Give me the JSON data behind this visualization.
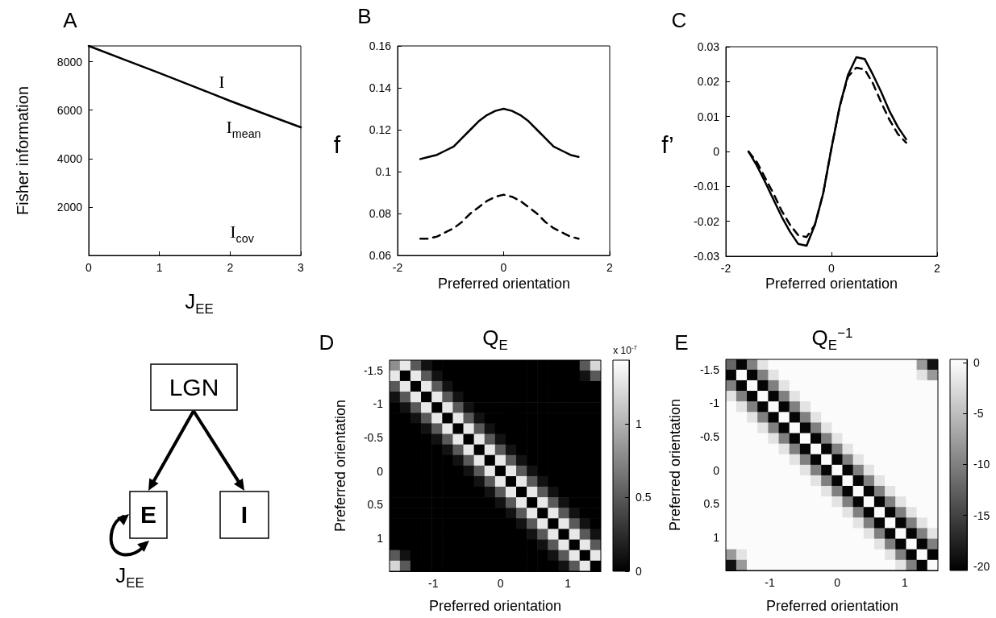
{
  "chart_data": [
    {
      "type": "line",
      "title": "A",
      "xlabel": "J$_{EE}$",
      "ylabel": "Fisher information",
      "x": [
        0,
        0.5,
        1,
        1.5,
        2,
        2.5,
        3
      ],
      "series": [
        {
          "color": "#000000",
          "line_style": "solid",
          "values": [
            8650,
            8090,
            7530,
            6960,
            6380,
            5830,
            5290
          ]
        }
      ],
      "xlim": [
        0,
        3
      ],
      "xticks": [
        0,
        1,
        2,
        3
      ],
      "ylim": [
        0,
        8650
      ],
      "yticks": [
        2000,
        4000,
        6000,
        8000
      ],
      "annotations": [
        "I",
        "I$_{mean}$",
        "I$_{cov}$"
      ]
    },
    {
      "type": "line",
      "title": "B",
      "xlabel": "Preferred orientation",
      "ylabel": "f",
      "x": [
        -1.571,
        -1.414,
        -1.257,
        -1.1,
        -0.942,
        -0.785,
        -0.628,
        -0.471,
        -0.314,
        -0.157,
        0,
        0.157,
        0.314,
        0.471,
        0.628,
        0.785,
        0.942,
        1.1,
        1.257,
        1.414
      ],
      "series": [
        {
          "color": "#000000",
          "line_style": "solid",
          "values": [
            0.106,
            0.107,
            0.108,
            0.11,
            0.112,
            0.116,
            0.12,
            0.124,
            0.127,
            0.129,
            0.13,
            0.129,
            0.127,
            0.124,
            0.12,
            0.116,
            0.112,
            0.11,
            0.108,
            0.107
          ]
        },
        {
          "color": "#000000",
          "line_style": "dashed",
          "values": [
            0.068,
            0.068,
            0.069,
            0.071,
            0.073,
            0.076,
            0.08,
            0.083,
            0.086,
            0.088,
            0.089,
            0.088,
            0.086,
            0.083,
            0.08,
            0.076,
            0.073,
            0.071,
            0.069,
            0.068
          ]
        }
      ],
      "xlim": [
        -2,
        2
      ],
      "xticks": [
        -2,
        0,
        2
      ],
      "ylim": [
        0.06,
        0.16
      ],
      "yticks": [
        0.06,
        0.08,
        0.1,
        0.12,
        0.14,
        0.16
      ]
    },
    {
      "type": "line",
      "title": "C",
      "xlabel": "Preferred orientation",
      "ylabel": "f’",
      "x": [
        -1.571,
        -1.414,
        -1.257,
        -1.1,
        -0.942,
        -0.785,
        -0.628,
        -0.471,
        -0.314,
        -0.157,
        0,
        0.157,
        0.314,
        0.471,
        0.628,
        0.785,
        0.942,
        1.1,
        1.257,
        1.414
      ],
      "series": [
        {
          "color": "#000000",
          "line_style": "solid",
          "values": [
            0,
            -0.004,
            -0.0087,
            -0.0137,
            -0.0187,
            -0.023,
            -0.0265,
            -0.027,
            -0.021,
            -0.012,
            0.001,
            0.013,
            0.022,
            0.027,
            0.0265,
            0.022,
            0.017,
            0.0115,
            0.007,
            0.0035
          ]
        },
        {
          "color": "#000000",
          "line_style": "dashed",
          "values": [
            0,
            -0.003,
            -0.0075,
            -0.012,
            -0.017,
            -0.021,
            -0.024,
            -0.0245,
            -0.021,
            -0.012,
            0.001,
            0.013,
            0.0215,
            0.024,
            0.0235,
            0.0195,
            0.014,
            0.009,
            0.005,
            0.0025
          ]
        }
      ],
      "xlim": [
        -2,
        2
      ],
      "xticks": [
        -2,
        0,
        2
      ],
      "ylim": [
        -0.03,
        0.03
      ],
      "yticks": [
        -0.03,
        -0.02,
        -0.01,
        0,
        0.01,
        0.02,
        0.03
      ]
    },
    {
      "type": "other",
      "annotations": [
        "LGN",
        "E",
        "I",
        "J$_{EE}$"
      ]
    },
    {
      "type": "heatmap",
      "title": "D",
      "subtitle": "Q$_{E}$",
      "xlabel": "Preferred orientation",
      "ylabel": "Preferred orientation",
      "clabel": "x 10$^{-7}$",
      "x": [
        -1.571,
        -1.414,
        -1.257,
        -1.1,
        -0.942,
        -0.785,
        -0.628,
        -0.471,
        -0.314,
        -0.157,
        0,
        0.157,
        0.314,
        0.471,
        0.628,
        0.785,
        0.942,
        1.1,
        1.257,
        1.414
      ],
      "y": [
        -1.571,
        -1.414,
        -1.257,
        -1.1,
        -0.942,
        -0.785,
        -0.628,
        -0.471,
        -0.314,
        -0.157,
        0,
        0.157,
        0.314,
        0.471,
        0.628,
        0.785,
        0.942,
        1.1,
        1.257,
        1.414
      ],
      "xlim": [
        -1.65,
        1.49
      ],
      "xticks": [
        -1,
        0,
        1
      ],
      "ylim": [
        1.49,
        -1.65
      ],
      "yticks": [
        -1.5,
        -1,
        -0.5,
        0,
        0.5,
        1
      ],
      "clim": [
        0,
        1.43
      ],
      "cticks": [
        0,
        0.5,
        1
      ],
      "cells": [
        [
          0.8,
          1.3,
          0.5,
          0.1,
          0,
          0,
          0,
          0,
          0,
          0,
          0,
          0,
          0,
          0,
          0,
          0,
          0,
          0,
          0.5,
          1.2
        ],
        [
          1.3,
          0,
          1.3,
          0.5,
          0.1,
          0,
          0,
          0,
          0,
          0,
          0,
          0,
          0,
          0,
          0,
          0,
          0,
          0,
          0.1,
          0.5
        ],
        [
          0.5,
          1.3,
          0,
          1.3,
          0.5,
          0.1,
          0,
          0,
          0,
          0,
          0,
          0,
          0,
          0,
          0,
          0,
          0,
          0,
          0,
          0
        ],
        [
          0.1,
          0.5,
          1.3,
          0,
          1.3,
          0.5,
          0.1,
          0,
          0,
          0,
          0,
          0,
          0,
          0,
          0,
          0,
          0,
          0,
          0,
          0
        ],
        [
          0,
          0.1,
          0.5,
          1.3,
          0,
          1.3,
          0.5,
          0.1,
          0,
          0,
          0,
          0,
          0,
          0,
          0,
          0,
          0,
          0,
          0,
          0
        ],
        [
          0,
          0,
          0.1,
          0.5,
          1.3,
          0,
          1.3,
          0.5,
          0.1,
          0,
          0,
          0,
          0,
          0,
          0,
          0,
          0,
          0,
          0,
          0
        ],
        [
          0,
          0,
          0,
          0.1,
          0.5,
          1.3,
          0,
          1.3,
          0.5,
          0.1,
          0,
          0,
          0,
          0,
          0,
          0,
          0,
          0,
          0,
          0
        ],
        [
          0,
          0,
          0,
          0,
          0.1,
          0.5,
          1.3,
          0,
          1.3,
          0.5,
          0.1,
          0,
          0,
          0,
          0,
          0,
          0,
          0,
          0,
          0
        ],
        [
          0,
          0,
          0,
          0,
          0,
          0.1,
          0.5,
          1.3,
          0,
          1.3,
          0.5,
          0.1,
          0,
          0,
          0,
          0,
          0,
          0,
          0,
          0
        ],
        [
          0,
          0,
          0,
          0,
          0,
          0,
          0.1,
          0.5,
          1.3,
          0,
          1.3,
          0.5,
          0.1,
          0,
          0,
          0,
          0,
          0,
          0,
          0
        ],
        [
          0,
          0,
          0,
          0,
          0,
          0,
          0,
          0.1,
          0.5,
          1.3,
          0,
          1.3,
          0.5,
          0.1,
          0,
          0,
          0,
          0,
          0,
          0
        ],
        [
          0,
          0,
          0,
          0,
          0,
          0,
          0,
          0,
          0.1,
          0.5,
          1.3,
          0,
          1.3,
          0.5,
          0.1,
          0,
          0,
          0,
          0,
          0
        ],
        [
          0,
          0,
          0,
          0,
          0,
          0,
          0,
          0,
          0,
          0.1,
          0.5,
          1.3,
          0,
          1.3,
          0.5,
          0.1,
          0,
          0,
          0,
          0
        ],
        [
          0,
          0,
          0,
          0,
          0,
          0,
          0,
          0,
          0,
          0,
          0.1,
          0.5,
          1.3,
          0,
          1.3,
          0.5,
          0.1,
          0,
          0,
          0
        ],
        [
          0,
          0,
          0,
          0,
          0,
          0,
          0,
          0,
          0,
          0,
          0,
          0.1,
          0.5,
          1.3,
          0,
          1.3,
          0.5,
          0.1,
          0,
          0
        ],
        [
          0,
          0,
          0,
          0,
          0,
          0,
          0,
          0,
          0,
          0,
          0,
          0,
          0.1,
          0.5,
          1.3,
          0,
          1.3,
          0.5,
          0.1,
          0
        ],
        [
          0,
          0,
          0,
          0,
          0,
          0,
          0,
          0,
          0,
          0,
          0,
          0,
          0,
          0.1,
          0.5,
          1.3,
          0,
          1.3,
          0.5,
          0.1
        ],
        [
          0,
          0,
          0,
          0,
          0,
          0,
          0,
          0,
          0,
          0,
          0,
          0,
          0,
          0,
          0.1,
          0.5,
          1.3,
          0,
          1.3,
          0.5
        ],
        [
          0.5,
          0.1,
          0,
          0,
          0,
          0,
          0,
          0,
          0,
          0,
          0,
          0,
          0,
          0,
          0,
          0.1,
          0.5,
          1.3,
          0,
          1.3
        ],
        [
          1.2,
          0.5,
          0,
          0,
          0,
          0,
          0,
          0,
          0,
          0,
          0,
          0,
          0,
          0,
          0,
          0,
          0.1,
          0.5,
          1.3,
          0
        ]
      ]
    },
    {
      "type": "heatmap",
      "title": "E",
      "subtitle": "Q$_{E}$$^{−1}$",
      "xlabel": "Preferred orientation",
      "ylabel": "Preferred orientation",
      "x": [
        -1.571,
        -1.414,
        -1.257,
        -1.1,
        -0.942,
        -0.785,
        -0.628,
        -0.471,
        -0.314,
        -0.157,
        0,
        0.157,
        0.314,
        0.471,
        0.628,
        0.785,
        0.942,
        1.1,
        1.257,
        1.414
      ],
      "y": [
        -1.571,
        -1.414,
        -1.257,
        -1.1,
        -0.942,
        -0.785,
        -0.628,
        -0.471,
        -0.314,
        -0.157,
        0,
        0.157,
        0.314,
        0.471,
        0.628,
        0.785,
        0.942,
        1.1,
        1.257,
        1.414
      ],
      "xlim": [
        -1.65,
        1.49
      ],
      "xticks": [
        -1,
        0,
        1
      ],
      "ylim": [
        1.49,
        -1.65
      ],
      "yticks": [
        -1.5,
        -1,
        -0.5,
        0,
        0.5,
        1
      ],
      "clim": [
        -20.4,
        0.3
      ],
      "cticks": [
        -20,
        -15,
        -10,
        -5,
        0
      ],
      "cells": [
        [
          -12,
          -20,
          -10,
          -2,
          0,
          0,
          0,
          0,
          0,
          0,
          0,
          0,
          0,
          0,
          0,
          0,
          0,
          0,
          -8,
          -19
        ],
        [
          -20,
          0,
          -20,
          -10,
          -2,
          0,
          0,
          0,
          0,
          0,
          0,
          0,
          0,
          0,
          0,
          0,
          0,
          0,
          -2,
          -8
        ],
        [
          -10,
          -20,
          0,
          -20,
          -10,
          -2,
          0,
          0,
          0,
          0,
          0,
          0,
          0,
          0,
          0,
          0,
          0,
          0,
          0,
          0
        ],
        [
          -2,
          -10,
          -20,
          0,
          -20,
          -10,
          -2,
          0,
          0,
          0,
          0,
          0,
          0,
          0,
          0,
          0,
          0,
          0,
          0,
          0
        ],
        [
          0,
          -2,
          -10,
          -20,
          0,
          -20,
          -10,
          -2,
          0,
          0,
          0,
          0,
          0,
          0,
          0,
          0,
          0,
          0,
          0,
          0
        ],
        [
          0,
          0,
          -2,
          -10,
          -20,
          0,
          -20,
          -10,
          -2,
          0,
          0,
          0,
          0,
          0,
          0,
          0,
          0,
          0,
          0,
          0
        ],
        [
          0,
          0,
          0,
          -2,
          -10,
          -20,
          0,
          -20,
          -10,
          -2,
          0,
          0,
          0,
          0,
          0,
          0,
          0,
          0,
          0,
          0
        ],
        [
          0,
          0,
          0,
          0,
          -2,
          -10,
          -20,
          0,
          -20,
          -10,
          -2,
          0,
          0,
          0,
          0,
          0,
          0,
          0,
          0,
          0
        ],
        [
          0,
          0,
          0,
          0,
          0,
          -2,
          -10,
          -20,
          0,
          -20,
          -10,
          -2,
          0,
          0,
          0,
          0,
          0,
          0,
          0,
          0
        ],
        [
          0,
          0,
          0,
          0,
          0,
          0,
          -2,
          -10,
          -20,
          0,
          -20,
          -10,
          -2,
          0,
          0,
          0,
          0,
          0,
          0,
          0
        ],
        [
          0,
          0,
          0,
          0,
          0,
          0,
          0,
          -2,
          -10,
          -20,
          0,
          -20,
          -10,
          -2,
          0,
          0,
          0,
          0,
          0,
          0
        ],
        [
          0,
          0,
          0,
          0,
          0,
          0,
          0,
          0,
          -2,
          -10,
          -20,
          0,
          -20,
          -10,
          -2,
          0,
          0,
          0,
          0,
          0
        ],
        [
          0,
          0,
          0,
          0,
          0,
          0,
          0,
          0,
          0,
          -2,
          -10,
          -20,
          0,
          -20,
          -10,
          -2,
          0,
          0,
          0,
          0
        ],
        [
          0,
          0,
          0,
          0,
          0,
          0,
          0,
          0,
          0,
          0,
          -2,
          -10,
          -20,
          0,
          -20,
          -10,
          -2,
          0,
          0,
          0
        ],
        [
          0,
          0,
          0,
          0,
          0,
          0,
          0,
          0,
          0,
          0,
          0,
          -2,
          -10,
          -20,
          0,
          -20,
          -10,
          -2,
          0,
          0
        ],
        [
          0,
          0,
          0,
          0,
          0,
          0,
          0,
          0,
          0,
          0,
          0,
          0,
          -2,
          -10,
          -20,
          0,
          -20,
          -10,
          -2,
          0
        ],
        [
          0,
          0,
          0,
          0,
          0,
          0,
          0,
          0,
          0,
          0,
          0,
          0,
          0,
          -2,
          -10,
          -20,
          0,
          -20,
          -10,
          -2
        ],
        [
          0,
          0,
          0,
          0,
          0,
          0,
          0,
          0,
          0,
          0,
          0,
          0,
          0,
          0,
          -2,
          -10,
          -20,
          0,
          -20,
          -10
        ],
        [
          -8,
          -2,
          0,
          0,
          0,
          0,
          0,
          0,
          0,
          0,
          0,
          0,
          0,
          0,
          0,
          -2,
          -10,
          -20,
          0,
          -20
        ],
        [
          -19,
          -8,
          0,
          0,
          0,
          0,
          0,
          0,
          0,
          0,
          0,
          0,
          0,
          0,
          0,
          0,
          -2,
          -10,
          -20,
          0
        ]
      ]
    }
  ]
}
